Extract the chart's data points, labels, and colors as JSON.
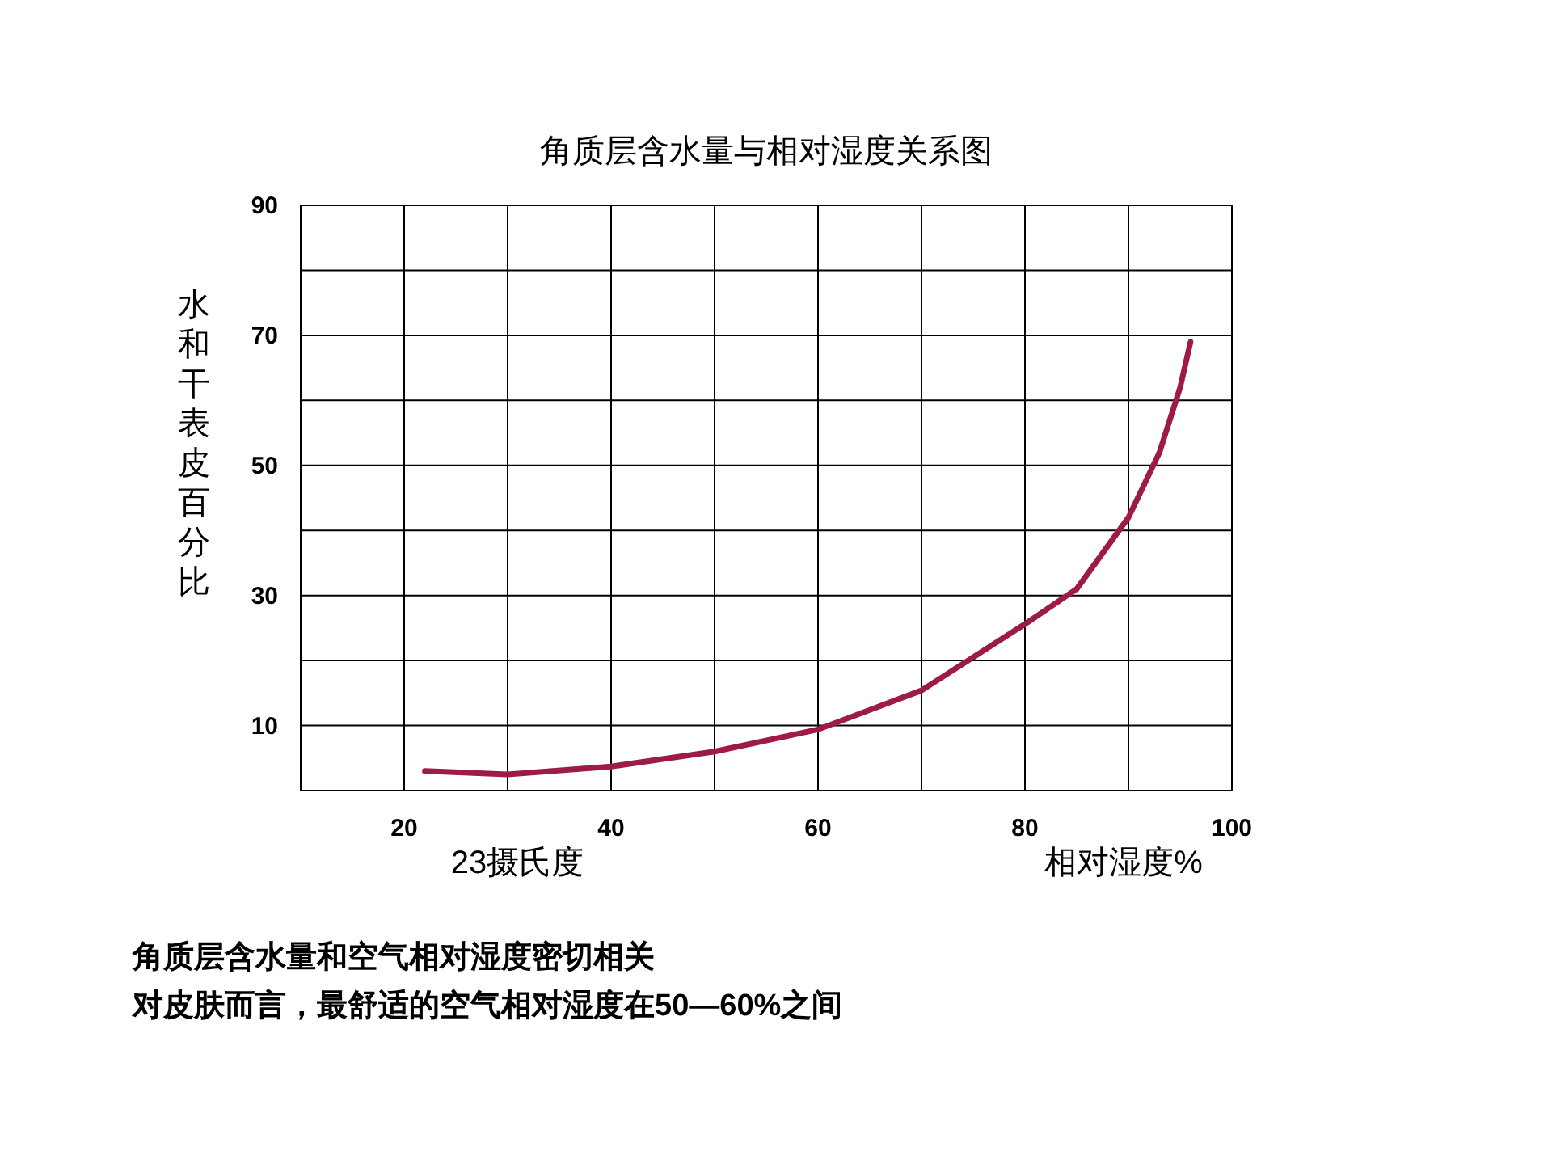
{
  "chart_data": {
    "type": "line",
    "title": "角质层含水量与相对湿度关系图",
    "xlabel": "相对湿度%",
    "ylabel": "水和干表皮百分比",
    "x": [
      22,
      30,
      40,
      50,
      60,
      70,
      80,
      85,
      90,
      93,
      95,
      96
    ],
    "series": [
      {
        "color": "#9e1b46",
        "values": [
          3.0,
          2.5,
          3.7,
          6,
          9.4,
          15.4,
          25.6,
          31,
          42,
          52,
          62,
          69
        ]
      }
    ],
    "xlim": [
      10,
      100
    ],
    "ylim": [
      0,
      90
    ],
    "xticks": [
      {
        "value": 10,
        "label": null
      },
      20,
      {
        "value": 30,
        "label": null
      },
      40,
      {
        "value": 50,
        "label": null
      },
      60,
      {
        "value": 70,
        "label": null
      },
      80,
      {
        "value": 90,
        "label": null
      },
      100
    ],
    "yticks": [
      10,
      {
        "value": 20,
        "label": null
      },
      30,
      {
        "value": 40,
        "label": null
      },
      50,
      {
        "value": 60,
        "label": null
      },
      70,
      {
        "value": 80,
        "label": null
      },
      90
    ],
    "grid": true,
    "marker": "none",
    "line_style": "solid",
    "annotations": [
      "23摄氏度",
      "角质层含水量和空气相对湿度密切相关",
      "对皮肤而言，最舒适的空气相对湿度在50—60%之间"
    ]
  }
}
